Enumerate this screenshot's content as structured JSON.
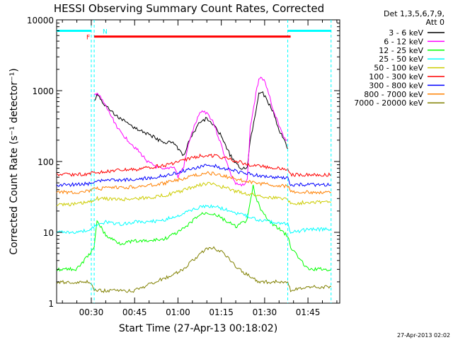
{
  "chart_data": {
    "type": "line",
    "title": "HESSI Observing Summary Count Rates, Corrected",
    "xlabel": "Start Time (27-Apr-13 00:18:02)",
    "ylabel": "Corrected Count Rate (s⁻¹ detector⁻¹)",
    "x_unit": "time of day (hh:mm)",
    "xlim": [
      "00:18",
      "01:56"
    ],
    "ylim": [
      1,
      10000
    ],
    "y_scale": "log",
    "x_ticks": [
      "00:30",
      "00:45",
      "01:00",
      "01:15",
      "01:30",
      "01:45"
    ],
    "y_ticks": [
      "1",
      "10",
      "100",
      "1000",
      "10000"
    ],
    "grid": false,
    "legend_position": "right, outside plot",
    "legend_header": [
      "Det 1,3,5,6,7,9,",
      "Att 0"
    ],
    "timestamp": "27-Apr-2013 02:02",
    "annotations": {
      "flare_flag": {
        "label": "F",
        "color": "#ff0000",
        "start": "00:31",
        "end": "01:39",
        "level": 5800
      },
      "night_flag": {
        "label": "N",
        "color": "#00ffff",
        "segments": [
          [
            "00:18",
            "00:30"
          ],
          [
            "01:38",
            "01:53"
          ]
        ],
        "level": 7000
      },
      "night_boundaries": [
        "00:30",
        "00:31",
        "01:38",
        "01:53"
      ]
    },
    "series": [
      {
        "name": "3 - 6 keV",
        "color": "#000000",
        "points": [
          [
            "00:31",
            700
          ],
          [
            "00:32",
            900
          ],
          [
            "00:35",
            600
          ],
          [
            "00:40",
            400
          ],
          [
            "00:45",
            300
          ],
          [
            "00:50",
            240
          ],
          [
            "00:55",
            185
          ],
          [
            "00:58",
            190
          ],
          [
            "00:59",
            180
          ],
          [
            "01:00",
            150
          ],
          [
            "01:02",
            118
          ],
          [
            "01:03",
            150
          ],
          [
            "01:04",
            200
          ],
          [
            "01:06",
            280
          ],
          [
            "01:08",
            380
          ],
          [
            "01:10",
            400
          ],
          [
            "01:12",
            340
          ],
          [
            "01:15",
            230
          ],
          [
            "01:18",
            125
          ],
          [
            "01:20",
            95
          ],
          [
            "01:22",
            75
          ],
          [
            "01:24",
            85
          ],
          [
            "01:25",
            200
          ],
          [
            "01:27",
            500
          ],
          [
            "01:28",
            900
          ],
          [
            "01:29",
            1000
          ],
          [
            "01:31",
            700
          ],
          [
            "01:33",
            500
          ],
          [
            "01:35",
            280
          ],
          [
            "01:37",
            190
          ],
          [
            "01:38",
            150
          ]
        ]
      },
      {
        "name": "6 - 12 keV",
        "color": "#ff00ff",
        "points": [
          [
            "00:31",
            850
          ],
          [
            "00:32",
            950
          ],
          [
            "00:35",
            600
          ],
          [
            "00:40",
            260
          ],
          [
            "00:45",
            160
          ],
          [
            "00:50",
            95
          ],
          [
            "00:55",
            75
          ],
          [
            "00:58",
            85
          ],
          [
            "00:59",
            80
          ],
          [
            "01:00",
            60
          ],
          [
            "01:02",
            85
          ],
          [
            "01:04",
            200
          ],
          [
            "01:06",
            340
          ],
          [
            "01:08",
            520
          ],
          [
            "01:10",
            490
          ],
          [
            "01:12",
            380
          ],
          [
            "01:15",
            170
          ],
          [
            "01:18",
            70
          ],
          [
            "01:20",
            48
          ],
          [
            "01:22",
            45
          ],
          [
            "01:24",
            55
          ],
          [
            "01:25",
            300
          ],
          [
            "01:27",
            900
          ],
          [
            "01:28",
            1500
          ],
          [
            "01:29",
            1600
          ],
          [
            "01:31",
            1100
          ],
          [
            "01:33",
            500
          ],
          [
            "01:35",
            330
          ],
          [
            "01:37",
            210
          ],
          [
            "01:38",
            200
          ]
        ]
      },
      {
        "name": "12 - 25 keV",
        "color": "#00ff00",
        "points": [
          [
            "00:18",
            3
          ],
          [
            "00:25",
            3
          ],
          [
            "00:31",
            6
          ],
          [
            "00:32",
            15
          ],
          [
            "00:35",
            9
          ],
          [
            "00:40",
            7
          ],
          [
            "00:45",
            7.5
          ],
          [
            "00:50",
            7.5
          ],
          [
            "00:55",
            8
          ],
          [
            "01:00",
            10
          ],
          [
            "01:03",
            12
          ],
          [
            "01:06",
            16
          ],
          [
            "01:08",
            18
          ],
          [
            "01:10",
            19
          ],
          [
            "01:13",
            18
          ],
          [
            "01:16",
            15
          ],
          [
            "01:20",
            12
          ],
          [
            "01:24",
            15
          ],
          [
            "01:26",
            45
          ],
          [
            "01:27",
            30
          ],
          [
            "01:29",
            20
          ],
          [
            "01:31",
            15
          ],
          [
            "01:34",
            12
          ],
          [
            "01:38",
            9
          ],
          [
            "01:39",
            6
          ],
          [
            "01:45",
            3
          ],
          [
            "01:53",
            3
          ]
        ]
      },
      {
        "name": "25 - 50 keV",
        "color": "#00ffff",
        "points": [
          [
            "00:18",
            10
          ],
          [
            "00:25",
            10
          ],
          [
            "00:30",
            11
          ],
          [
            "00:31",
            12
          ],
          [
            "00:35",
            14
          ],
          [
            "00:40",
            13
          ],
          [
            "00:45",
            14
          ],
          [
            "00:50",
            14
          ],
          [
            "00:55",
            15
          ],
          [
            "01:00",
            17
          ],
          [
            "01:04",
            20
          ],
          [
            "01:08",
            23
          ],
          [
            "01:10",
            24
          ],
          [
            "01:13",
            23
          ],
          [
            "01:16",
            21
          ],
          [
            "01:20",
            19
          ],
          [
            "01:24",
            17
          ],
          [
            "01:28",
            15
          ],
          [
            "01:32",
            14
          ],
          [
            "01:38",
            13
          ],
          [
            "01:39",
            10
          ],
          [
            "01:45",
            11
          ],
          [
            "01:53",
            11
          ]
        ]
      },
      {
        "name": "50 - 100 keV",
        "color": "#cccc00",
        "points": [
          [
            "00:18",
            25
          ],
          [
            "00:25",
            25
          ],
          [
            "00:30",
            27
          ],
          [
            "00:31",
            30
          ],
          [
            "00:35",
            30
          ],
          [
            "00:40",
            29
          ],
          [
            "00:45",
            30
          ],
          [
            "00:50",
            31
          ],
          [
            "00:55",
            33
          ],
          [
            "01:00",
            37
          ],
          [
            "01:04",
            42
          ],
          [
            "01:08",
            47
          ],
          [
            "01:10",
            49
          ],
          [
            "01:13",
            47
          ],
          [
            "01:16",
            43
          ],
          [
            "01:20",
            38
          ],
          [
            "01:24",
            35
          ],
          [
            "01:28",
            33
          ],
          [
            "01:32",
            31
          ],
          [
            "01:38",
            30
          ],
          [
            "01:39",
            25
          ],
          [
            "01:45",
            27
          ],
          [
            "01:53",
            27
          ]
        ]
      },
      {
        "name": "100 - 300 keV",
        "color": "#ff0000",
        "points": [
          [
            "00:18",
            65
          ],
          [
            "00:25",
            65
          ],
          [
            "00:30",
            68
          ],
          [
            "00:31",
            70
          ],
          [
            "00:35",
            72
          ],
          [
            "00:40",
            75
          ],
          [
            "00:45",
            77
          ],
          [
            "00:50",
            82
          ],
          [
            "00:55",
            88
          ],
          [
            "01:00",
            98
          ],
          [
            "01:04",
            110
          ],
          [
            "01:08",
            120
          ],
          [
            "01:10",
            122
          ],
          [
            "01:13",
            120
          ],
          [
            "01:16",
            112
          ],
          [
            "01:20",
            102
          ],
          [
            "01:24",
            92
          ],
          [
            "01:28",
            86
          ],
          [
            "01:32",
            82
          ],
          [
            "01:38",
            79
          ],
          [
            "01:39",
            65
          ],
          [
            "01:45",
            65
          ],
          [
            "01:53",
            65
          ]
        ]
      },
      {
        "name": "300 - 800 keV",
        "color": "#0000ff",
        "points": [
          [
            "00:18",
            47
          ],
          [
            "00:25",
            47
          ],
          [
            "00:30",
            49
          ],
          [
            "00:31",
            52
          ],
          [
            "00:35",
            54
          ],
          [
            "00:40",
            55
          ],
          [
            "00:45",
            56
          ],
          [
            "00:50",
            59
          ],
          [
            "00:55",
            63
          ],
          [
            "01:00",
            70
          ],
          [
            "01:04",
            78
          ],
          [
            "01:08",
            86
          ],
          [
            "01:10",
            88
          ],
          [
            "01:13",
            86
          ],
          [
            "01:16",
            80
          ],
          [
            "01:20",
            73
          ],
          [
            "01:24",
            67
          ],
          [
            "01:28",
            63
          ],
          [
            "01:32",
            60
          ],
          [
            "01:38",
            58
          ],
          [
            "01:39",
            47
          ],
          [
            "01:45",
            47
          ],
          [
            "01:53",
            47
          ]
        ]
      },
      {
        "name": "800 - 7000 keV",
        "color": "#ff8000",
        "points": [
          [
            "00:18",
            37
          ],
          [
            "00:25",
            37
          ],
          [
            "00:30",
            39
          ],
          [
            "00:31",
            41
          ],
          [
            "00:35",
            42
          ],
          [
            "00:40",
            43
          ],
          [
            "00:45",
            44
          ],
          [
            "00:50",
            46
          ],
          [
            "00:55",
            49
          ],
          [
            "01:00",
            55
          ],
          [
            "01:04",
            61
          ],
          [
            "01:08",
            67
          ],
          [
            "01:10",
            69
          ],
          [
            "01:13",
            67
          ],
          [
            "01:16",
            62
          ],
          [
            "01:20",
            57
          ],
          [
            "01:24",
            52
          ],
          [
            "01:28",
            49
          ],
          [
            "01:32",
            47
          ],
          [
            "01:38",
            45
          ],
          [
            "01:39",
            37
          ],
          [
            "01:45",
            37
          ],
          [
            "01:53",
            37
          ]
        ]
      },
      {
        "name": "7000 - 20000 keV",
        "color": "#808000",
        "points": [
          [
            "00:18",
            2
          ],
          [
            "00:30",
            2
          ],
          [
            "00:31",
            1.5
          ],
          [
            "00:35",
            1.5
          ],
          [
            "00:45",
            1.5
          ],
          [
            "00:52",
            2
          ],
          [
            "00:58",
            2.5
          ],
          [
            "01:02",
            3
          ],
          [
            "01:05",
            4
          ],
          [
            "01:08",
            5
          ],
          [
            "01:10",
            6
          ],
          [
            "01:12",
            6
          ],
          [
            "01:14",
            5.5
          ],
          [
            "01:16",
            5
          ],
          [
            "01:18",
            4
          ],
          [
            "01:21",
            3
          ],
          [
            "01:24",
            2.5
          ],
          [
            "01:28",
            2
          ],
          [
            "01:32",
            2
          ],
          [
            "01:38",
            2
          ],
          [
            "01:39",
            1.5
          ],
          [
            "01:45",
            1.7
          ],
          [
            "01:53",
            1.7
          ]
        ]
      }
    ]
  }
}
